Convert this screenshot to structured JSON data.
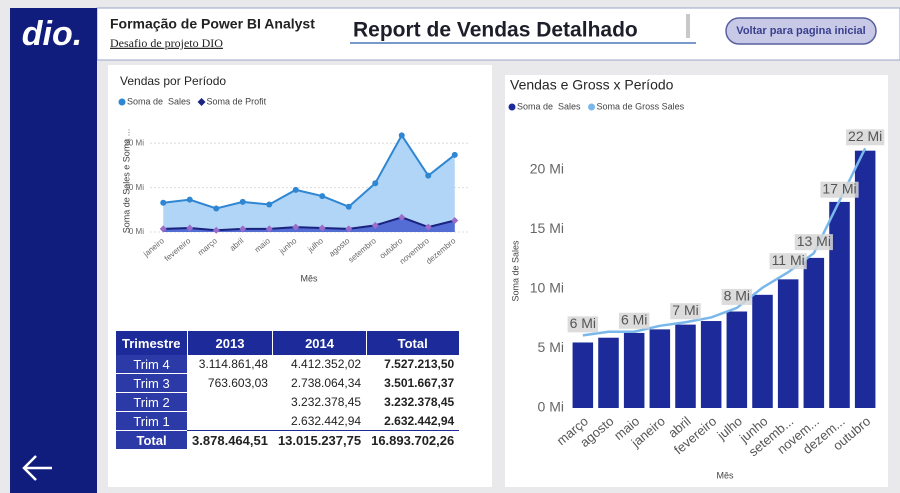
{
  "header": {
    "logo": "dio.",
    "title": "Formação de Power BI Analyst",
    "subtitle": "Desafio de projeto DIO",
    "report_title": "Report de Vendas Detalhado",
    "button": "Voltar para pagina inicial"
  },
  "chart_data": [
    {
      "type": "area",
      "title": "Vendas por Período",
      "x_label": "Mês",
      "y_label": "Soma de Sales e Soma ...",
      "categories": [
        "janeiro",
        "fevereiro",
        "março",
        "abril",
        "maio",
        "junho",
        "julho",
        "agosto",
        "setembro",
        "outubro",
        "novembro",
        "dezembro"
      ],
      "series": [
        {
          "name": "Soma de  Sales",
          "color": "#2f86d2",
          "area_color": "#a7d0f6",
          "marker": "circle",
          "marker_color": "#2f86d2",
          "values": [
            6.6,
            7.3,
            5.3,
            6.8,
            6.2,
            9.5,
            8.1,
            5.7,
            11.0,
            21.8,
            12.7,
            17.4
          ]
        },
        {
          "name": "Soma de Profit",
          "color": "#1a237e",
          "area_color": "#4a62d0",
          "marker": "diamond",
          "marker_color": "#9b6cc8",
          "values": [
            0.7,
            0.9,
            0.4,
            0.7,
            0.7,
            1.1,
            0.9,
            0.7,
            1.5,
            3.3,
            1.1,
            2.6
          ]
        }
      ],
      "ylim": [
        0,
        23
      ],
      "yticks": [
        {
          "value": 0,
          "label": "0 Mi"
        },
        {
          "value": 10,
          "label": "10 Mi"
        },
        {
          "value": 20,
          "label": "20 Mi"
        }
      ],
      "grid": true
    },
    {
      "type": "bar",
      "title": "Vendas e Gross x Período",
      "x_label": "Mês",
      "y_label": "Soma de Sales",
      "categories": [
        "março",
        "agosto",
        "maio",
        "janeiro",
        "abril",
        "fevereiro",
        "julho",
        "junho",
        "setemb...",
        "novem...",
        "dezem...",
        "outubro"
      ],
      "series": [
        {
          "name": "Soma de  Sales",
          "color": "#1c2a9a",
          "type": "bar",
          "values": [
            5.5,
            5.9,
            6.3,
            6.6,
            7.0,
            7.3,
            8.1,
            9.5,
            10.8,
            12.6,
            17.3,
            21.6
          ]
        },
        {
          "name": "Soma de Gross Sales",
          "color": "#7ab8ec",
          "type": "line",
          "values": [
            6.1,
            6.4,
            6.4,
            6.9,
            7.2,
            7.6,
            8.4,
            10.1,
            11.4,
            13.0,
            17.4,
            21.8
          ],
          "value_labels": [
            "6 Mi",
            null,
            "6 Mi",
            null,
            "7 Mi",
            null,
            "8 Mi",
            null,
            "11 Mi",
            "13 Mi",
            "17 Mi",
            "22 Mi"
          ]
        }
      ],
      "ylim": [
        0,
        23
      ],
      "yticks": [
        {
          "value": 0,
          "label": "0 Mi"
        },
        {
          "value": 5,
          "label": "5 Mi"
        },
        {
          "value": 10,
          "label": "10 Mi"
        },
        {
          "value": 15,
          "label": "15 Mi"
        },
        {
          "value": 20,
          "label": "20 Mi"
        }
      ],
      "grid": false
    }
  ],
  "table": {
    "columns": [
      "Trimestre",
      "2013",
      "2014",
      "Total"
    ],
    "rows": [
      [
        "Trim 4",
        "3.114.861,48",
        "4.412.352,02",
        "7.527.213,50"
      ],
      [
        "Trim 3",
        "763.603,03",
        "2.738.064,34",
        "3.501.667,37"
      ],
      [
        "Trim 2",
        null,
        "3.232.378,45",
        "3.232.378,45"
      ],
      [
        "Trim 1",
        null,
        "2.632.442,94",
        "2.632.442,94"
      ],
      [
        "Total",
        "3.878.464,51",
        "13.015.237,75",
        "16.893.702,26"
      ]
    ]
  }
}
